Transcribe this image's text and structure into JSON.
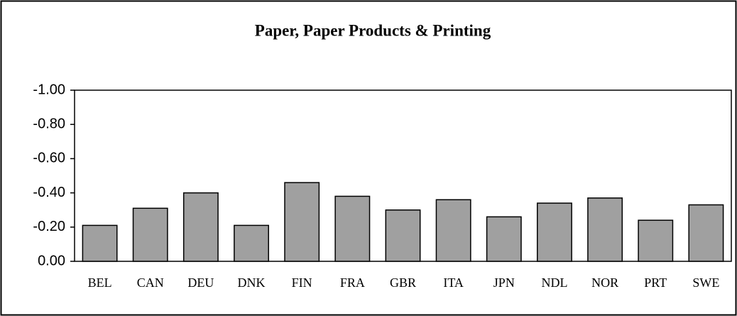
{
  "chart_data": {
    "type": "bar",
    "title": "Paper, Paper Products & Printing",
    "categories": [
      "BEL",
      "CAN",
      "DEU",
      "DNK",
      "FIN",
      "FRA",
      "GBR",
      "ITA",
      "JPN",
      "NDL",
      "NOR",
      "PRT",
      "SWE"
    ],
    "values": [
      -0.21,
      -0.31,
      -0.4,
      -0.21,
      -0.46,
      -0.38,
      -0.3,
      -0.36,
      -0.26,
      -0.34,
      -0.37,
      -0.24,
      -0.33
    ],
    "color": "#a0a0a0",
    "ylim": [
      0,
      -1
    ],
    "yticks": [
      {
        "value": 0,
        "label": "0.00"
      },
      {
        "value": -0.2,
        "label": "-0.20"
      },
      {
        "value": -0.4,
        "label": "-0.40"
      },
      {
        "value": -0.6,
        "label": "-0.60"
      },
      {
        "value": -0.8,
        "label": "-0.80"
      },
      {
        "value": -1,
        "label": "-1.00"
      }
    ],
    "grid": false
  }
}
